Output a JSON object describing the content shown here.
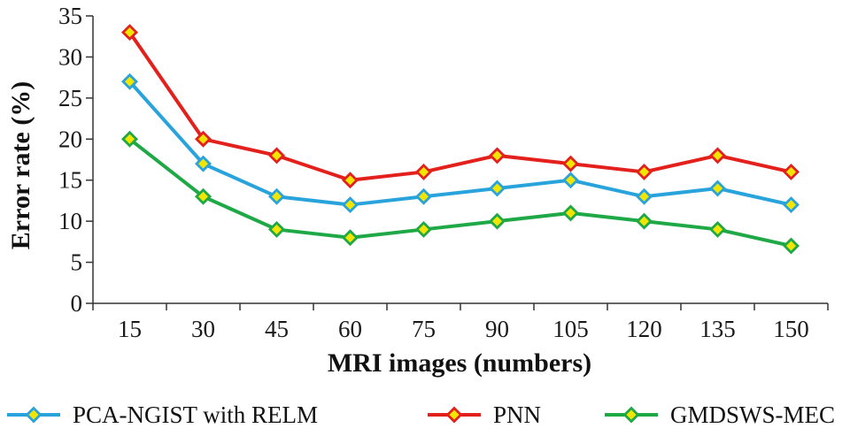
{
  "chart_data": {
    "type": "line",
    "title": "",
    "xlabel": "MRI images (numbers)",
    "ylabel": "Error rate (%)",
    "categories": [
      "15",
      "30",
      "45",
      "60",
      "75",
      "90",
      "105",
      "120",
      "135",
      "150"
    ],
    "ylim": [
      0,
      35
    ],
    "yticks": [
      0,
      5,
      10,
      15,
      20,
      25,
      30,
      35
    ],
    "grid": false,
    "legend_position": "bottom",
    "marker": "diamond",
    "marker_fill": "#f2e600",
    "series": [
      {
        "name": "PCA-NGIST with RELM",
        "color": "#29a3dc",
        "values": [
          27,
          17,
          13,
          12,
          13,
          14,
          15,
          13,
          14,
          12
        ]
      },
      {
        "name": "PNN",
        "color": "#e3201b",
        "values": [
          33,
          20,
          18,
          15,
          16,
          18,
          17,
          16,
          18,
          16
        ]
      },
      {
        "name": "GMDSWS-MEC",
        "color": "#1fa846",
        "values": [
          20,
          13,
          9,
          8,
          9,
          10,
          11,
          10,
          9,
          7
        ]
      }
    ]
  }
}
